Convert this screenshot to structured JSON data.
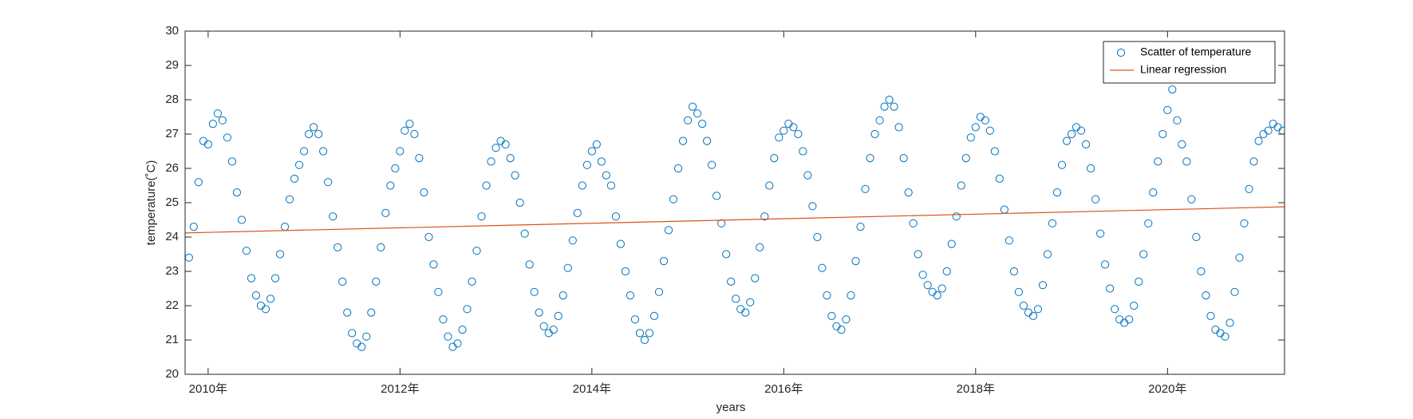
{
  "chart_data": {
    "type": "scatter",
    "xlabel": "years",
    "ylabel": "temperature(˚C)",
    "xlim": [
      2009.76,
      2021.22
    ],
    "ylim": [
      20,
      30
    ],
    "xticks": [
      {
        "value": 2010,
        "label": "2010年"
      },
      {
        "value": 2012,
        "label": "2012年"
      },
      {
        "value": 2014,
        "label": "2014年"
      },
      {
        "value": 2016,
        "label": "2016年"
      },
      {
        "value": 2018,
        "label": "2018年"
      },
      {
        "value": 2020,
        "label": "2020年"
      }
    ],
    "yticks": [
      20,
      21,
      22,
      23,
      24,
      25,
      26,
      27,
      28,
      29,
      30
    ],
    "grid": false,
    "legend": "northeast",
    "series": [
      {
        "name": "Scatter of temperature",
        "type": "scatter",
        "color": "#0072bd",
        "x": [
          2009.8,
          2009.85,
          2009.9,
          2009.95,
          2010,
          2010.05,
          2010.1,
          2010.15,
          2010.2,
          2010.25,
          2010.3,
          2010.35,
          2010.4,
          2010.45,
          2010.5,
          2010.55,
          2010.6,
          2010.65,
          2010.7,
          2010.75,
          2010.8,
          2010.85,
          2010.9,
          2010.95,
          2011,
          2011.05,
          2011.1,
          2011.15,
          2011.2,
          2011.25,
          2011.3,
          2011.35,
          2011.4,
          2011.45,
          2011.5,
          2011.55,
          2011.6,
          2011.65,
          2011.7,
          2011.75,
          2011.8,
          2011.85,
          2011.9,
          2011.95,
          2012,
          2012.05,
          2012.1,
          2012.15,
          2012.2,
          2012.25,
          2012.3,
          2012.35,
          2012.4,
          2012.45,
          2012.5,
          2012.55,
          2012.6,
          2012.65,
          2012.7,
          2012.75,
          2012.8,
          2012.85,
          2012.9,
          2012.95,
          2013,
          2013.05,
          2013.1,
          2013.15,
          2013.2,
          2013.25,
          2013.3,
          2013.35,
          2013.4,
          2013.45,
          2013.5,
          2013.55,
          2013.6,
          2013.65,
          2013.7,
          2013.75,
          2013.8,
          2013.85,
          2013.9,
          2013.95,
          2014,
          2014.05,
          2014.1,
          2014.15,
          2014.2,
          2014.25,
          2014.3,
          2014.35,
          2014.4,
          2014.45,
          2014.5,
          2014.55,
          2014.6,
          2014.65,
          2014.7,
          2014.75,
          2014.8,
          2014.85,
          2014.9,
          2014.95,
          2015,
          2015.05,
          2015.1,
          2015.15,
          2015.2,
          2015.25,
          2015.3,
          2015.35,
          2015.4,
          2015.45,
          2015.5,
          2015.55,
          2015.6,
          2015.65,
          2015.7,
          2015.75,
          2015.8,
          2015.85,
          2015.9,
          2015.95,
          2016,
          2016.05,
          2016.1,
          2016.15,
          2016.2,
          2016.25,
          2016.3,
          2016.35,
          2016.4,
          2016.45,
          2016.5,
          2016.55,
          2016.6,
          2016.65,
          2016.7,
          2016.75,
          2016.8,
          2016.85,
          2016.9,
          2016.95,
          2017,
          2017.05,
          2017.1,
          2017.15,
          2017.2,
          2017.25,
          2017.3,
          2017.35,
          2017.4,
          2017.45,
          2017.5,
          2017.55,
          2017.6,
          2017.65,
          2017.7,
          2017.75,
          2017.8,
          2017.85,
          2017.9,
          2017.95,
          2018,
          2018.05,
          2018.1,
          2018.15,
          2018.2,
          2018.25,
          2018.3,
          2018.35,
          2018.4,
          2018.45,
          2018.5,
          2018.55,
          2018.6,
          2018.65,
          2018.7,
          2018.75,
          2018.8,
          2018.85,
          2018.9,
          2018.95,
          2019,
          2019.05,
          2019.1,
          2019.15,
          2019.2,
          2019.25,
          2019.3,
          2019.35,
          2019.4,
          2019.45,
          2019.5,
          2019.55,
          2019.6,
          2019.65,
          2019.7,
          2019.75,
          2019.8,
          2019.85,
          2019.9,
          2019.95,
          2020,
          2020.05,
          2020.1,
          2020.15,
          2020.2,
          2020.25,
          2020.3,
          2020.35,
          2020.4,
          2020.45,
          2020.5,
          2020.55,
          2020.6,
          2020.65,
          2020.7,
          2020.75,
          2020.8,
          2020.85,
          2020.9,
          2020.95,
          2021,
          2021.05,
          2021.1,
          2021.15,
          2021.2
        ],
        "values": [
          23.4,
          24.3,
          25.6,
          26.8,
          26.7,
          27.3,
          27.6,
          27.4,
          26.9,
          26.2,
          25.3,
          24.5,
          23.6,
          22.8,
          22.3,
          22.0,
          21.9,
          22.2,
          22.8,
          23.5,
          24.3,
          25.1,
          25.7,
          26.1,
          26.5,
          27.0,
          27.2,
          27.0,
          26.5,
          25.6,
          24.6,
          23.7,
          22.7,
          21.8,
          21.2,
          20.9,
          20.8,
          21.1,
          21.8,
          22.7,
          23.7,
          24.7,
          25.5,
          26.0,
          26.5,
          27.1,
          27.3,
          27.0,
          26.3,
          25.3,
          24.0,
          23.2,
          22.4,
          21.6,
          21.1,
          20.8,
          20.9,
          21.3,
          21.9,
          22.7,
          23.6,
          24.6,
          25.5,
          26.2,
          26.6,
          26.8,
          26.7,
          26.3,
          25.8,
          25.0,
          24.1,
          23.2,
          22.4,
          21.8,
          21.4,
          21.2,
          21.3,
          21.7,
          22.3,
          23.1,
          23.9,
          24.7,
          25.5,
          26.1,
          26.5,
          26.7,
          26.2,
          25.8,
          25.5,
          24.6,
          23.8,
          23.0,
          22.3,
          21.6,
          21.2,
          21.0,
          21.2,
          21.7,
          22.4,
          23.3,
          24.2,
          25.1,
          26.0,
          26.8,
          27.4,
          27.8,
          27.6,
          27.3,
          26.8,
          26.1,
          25.2,
          24.4,
          23.5,
          22.7,
          22.2,
          21.9,
          21.8,
          22.1,
          22.8,
          23.7,
          24.6,
          25.5,
          26.3,
          26.9,
          27.1,
          27.3,
          27.2,
          27.0,
          26.5,
          25.8,
          24.9,
          24.0,
          23.1,
          22.3,
          21.7,
          21.4,
          21.3,
          21.6,
          22.3,
          23.3,
          24.3,
          25.4,
          26.3,
          27.0,
          27.4,
          27.8,
          28.0,
          27.8,
          27.2,
          26.3,
          25.3,
          24.4,
          23.5,
          22.9,
          22.6,
          22.4,
          22.3,
          22.5,
          23.0,
          23.8,
          24.6,
          25.5,
          26.3,
          26.9,
          27.2,
          27.5,
          27.4,
          27.1,
          26.5,
          25.7,
          24.8,
          23.9,
          23.0,
          22.4,
          22.0,
          21.8,
          21.7,
          21.9,
          22.6,
          23.5,
          24.4,
          25.3,
          26.1,
          26.8,
          27.0,
          27.2,
          27.1,
          26.7,
          26.0,
          25.1,
          24.1,
          23.2,
          22.5,
          21.9,
          21.6,
          21.5,
          21.6,
          22.0,
          22.7,
          23.5,
          24.4,
          25.3,
          26.2,
          27.0,
          27.7,
          28.3,
          27.4,
          26.7,
          26.2,
          25.1,
          24.0,
          23.0,
          22.3,
          21.7,
          21.3,
          21.2,
          21.1,
          21.5,
          22.4,
          23.4,
          24.4,
          25.4,
          26.2,
          26.8,
          27.0,
          27.1,
          27.3,
          27.2,
          27.1
        ]
      },
      {
        "name": "Linear regression",
        "type": "line",
        "color": "#d95319",
        "x": [
          2009.76,
          2021.22
        ],
        "values": [
          24.12,
          24.88
        ]
      }
    ]
  }
}
